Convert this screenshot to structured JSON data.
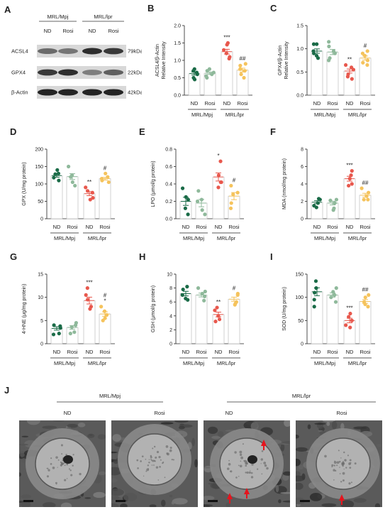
{
  "colors": {
    "mpj_nd": "#1a6b47",
    "mpj_rosi": "#8fb99b",
    "lpr_nd": "#e8584d",
    "lpr_rosi": "#f5c35c",
    "arrow": "#e5141d"
  },
  "western_blot": {
    "panel_label": "A",
    "groups": [
      "MRL/Mpj",
      "MRL/lpr"
    ],
    "lanes": [
      "ND",
      "Rosi",
      "ND",
      "Rosi"
    ],
    "bands": [
      {
        "protein": "ACSL4",
        "size": "79kDa"
      },
      {
        "protein": "GPX4",
        "size": "22kDa"
      },
      {
        "protein": "β-Actin",
        "size": "42kDa"
      }
    ]
  },
  "chart_data": [
    {
      "panel": "B",
      "type": "bar",
      "ylabel": "ACSL4/β-Actin\nRelative Intensity",
      "ylim": [
        0,
        2.0
      ],
      "yticks": [
        "0.0",
        "0.5",
        "1.0",
        "1.5",
        "2.0"
      ],
      "categories": [
        "ND",
        "Rosi",
        "ND",
        "Rosi"
      ],
      "groups": [
        "MRL/Mpj",
        "MRL/lpr"
      ],
      "means": [
        0.62,
        0.63,
        1.25,
        0.72
      ],
      "points": [
        [
          0.5,
          0.6,
          0.75,
          0.65,
          0.45,
          0.7
        ],
        [
          0.55,
          0.7,
          0.65,
          0.75,
          0.5,
          0.6
        ],
        [
          1.45,
          1.1,
          1.3,
          1.5,
          1.05,
          1.2
        ],
        [
          0.85,
          0.6,
          0.75,
          0.5,
          0.9,
          0.7
        ]
      ],
      "significance": [
        "",
        "",
        "***",
        "##"
      ]
    },
    {
      "panel": "C",
      "type": "bar",
      "ylabel": "GPX4/β-Actin\nRelative Intensity",
      "ylim": [
        0,
        1.5
      ],
      "yticks": [
        "0.0",
        "0.5",
        "1.0",
        "1.5"
      ],
      "categories": [
        "ND",
        "Rosi",
        "ND",
        "Rosi"
      ],
      "groups": [
        "MRL/Mpj",
        "MRL/lpr"
      ],
      "means": [
        0.95,
        0.93,
        0.52,
        0.8
      ],
      "points": [
        [
          1.1,
          0.9,
          0.95,
          1.1,
          0.8,
          0.85
        ],
        [
          1.15,
          0.9,
          0.95,
          0.8,
          1.05,
          0.75
        ],
        [
          0.4,
          0.6,
          0.55,
          0.35,
          0.45,
          0.65
        ],
        [
          0.9,
          0.7,
          0.85,
          0.95,
          0.75,
          0.65
        ]
      ],
      "significance": [
        "",
        "",
        "**",
        "#"
      ]
    },
    {
      "panel": "D",
      "type": "bar",
      "ylabel": "GPX (U/mg protein)",
      "ylim": [
        0,
        200
      ],
      "yticks": [
        "0",
        "50",
        "100",
        "150",
        "200"
      ],
      "categories": [
        "ND",
        "Rosi",
        "ND",
        "Rosi"
      ],
      "groups": [
        "MRL/Mpj",
        "MRL/lpr"
      ],
      "means": [
        124,
        121,
        72,
        115
      ],
      "points": [
        [
          110,
          128,
          140,
          118,
          130
        ],
        [
          105,
          150,
          125,
          120,
          95
        ],
        [
          60,
          80,
          90,
          55,
          75
        ],
        [
          105,
          120,
          130,
          110,
          115
        ]
      ],
      "significance": [
        "",
        "",
        "**",
        "#"
      ]
    },
    {
      "panel": "E",
      "type": "bar",
      "ylabel": "LPO (μmol/g protein)",
      "ylim": [
        0,
        0.8
      ],
      "yticks": [
        "0.0",
        "0.2",
        "0.4",
        "0.6",
        "0.8"
      ],
      "categories": [
        "ND",
        "Rosi",
        "ND",
        "Rosi"
      ],
      "groups": [
        "MRL/Mpj",
        "MRL/lpr"
      ],
      "means": [
        0.2,
        0.18,
        0.48,
        0.26
      ],
      "points": [
        [
          0.12,
          0.25,
          0.35,
          0.05,
          0.22
        ],
        [
          0.1,
          0.2,
          0.32,
          0.05,
          0.22
        ],
        [
          0.42,
          0.5,
          0.66,
          0.36,
          0.42
        ],
        [
          0.18,
          0.28,
          0.38,
          0.12,
          0.3
        ]
      ],
      "significance": [
        "",
        "",
        "*",
        "#"
      ]
    },
    {
      "panel": "F",
      "type": "bar",
      "ylabel": "MDA (nmol/mg protein)",
      "ylim": [
        0,
        8
      ],
      "yticks": [
        "0",
        "2",
        "4",
        "6",
        "8"
      ],
      "categories": [
        "ND",
        "Rosi",
        "ND",
        "Rosi"
      ],
      "groups": [
        "MRL/Mpj",
        "MRL/lpr"
      ],
      "means": [
        1.9,
        1.8,
        4.6,
        2.7
      ],
      "points": [
        [
          1.5,
          2.3,
          1.8,
          1.3,
          2.2
        ],
        [
          1.2,
          2.2,
          1.8,
          1.0,
          2.1
        ],
        [
          4.0,
          5.5,
          4.6,
          3.8,
          5.0
        ],
        [
          2.2,
          3.0,
          2.6,
          3.5,
          2.2
        ]
      ],
      "significance": [
        "",
        "",
        "***",
        "##"
      ]
    },
    {
      "panel": "G",
      "type": "bar",
      "ylabel": "4-HNE (μg/mg protein)",
      "ylim": [
        0,
        15
      ],
      "yticks": [
        "0",
        "5",
        "10",
        "15"
      ],
      "categories": [
        "ND",
        "Rosi",
        "ND",
        "Rosi"
      ],
      "groups": [
        "MRL/Mpj",
        "MRL/lpr"
      ],
      "means": [
        3.3,
        3.5,
        9.3,
        6.4
      ],
      "points": [
        [
          2.2,
          3.8,
          4.0,
          2.0,
          3.4
        ],
        [
          2.5,
          4.5,
          3.6,
          2.2,
          4.0
        ],
        [
          8.0,
          10.5,
          9.5,
          12.0,
          7.5
        ],
        [
          5.5,
          7.0,
          5.0,
          8.0,
          6.2
        ]
      ],
      "significance": [
        "",
        "",
        "***",
        "#\n*"
      ]
    },
    {
      "panel": "H",
      "type": "bar",
      "ylabel": "GSH (μmol/g protein)",
      "ylim": [
        0,
        10
      ],
      "yticks": [
        "0",
        "2",
        "4",
        "6",
        "8",
        "10"
      ],
      "categories": [
        "ND",
        "Rosi",
        "ND",
        "Rosi"
      ],
      "groups": [
        "MRL/Mpj",
        "MRL/lpr"
      ],
      "means": [
        7.2,
        7.0,
        4.2,
        6.4
      ],
      "points": [
        [
          6.5,
          7.8,
          8.2,
          6.3,
          7.0
        ],
        [
          6.2,
          7.5,
          8.0,
          6.8,
          7.2
        ],
        [
          3.5,
          5.2,
          4.8,
          3.2,
          4.0
        ],
        [
          5.8,
          7.2,
          6.0,
          7.0,
          5.6
        ]
      ],
      "significance": [
        "",
        "",
        "**",
        "#"
      ]
    },
    {
      "panel": "I",
      "type": "bar",
      "ylabel": "SOD (U/mg protein)",
      "ylim": [
        0,
        150
      ],
      "yticks": [
        "0",
        "50",
        "100",
        "150"
      ],
      "categories": [
        "ND",
        "Rosi",
        "ND",
        "Rosi"
      ],
      "groups": [
        "MRL/Mpj",
        "MRL/lpr"
      ],
      "means": [
        112,
        105,
        50,
        91
      ],
      "points": [
        [
          80,
          135,
          110,
          120,
          95
        ],
        [
          90,
          120,
          105,
          112,
          100
        ],
        [
          35,
          65,
          50,
          40,
          58
        ],
        [
          80,
          100,
          90,
          105,
          85
        ]
      ],
      "significance": [
        "",
        "",
        "***",
        "##"
      ]
    }
  ],
  "micrographs": {
    "panel_label": "J",
    "groups": [
      "MRL/Mpj",
      "MRL/lpr"
    ],
    "labels": [
      "ND",
      "Rosi",
      "ND",
      "Rosi"
    ]
  }
}
